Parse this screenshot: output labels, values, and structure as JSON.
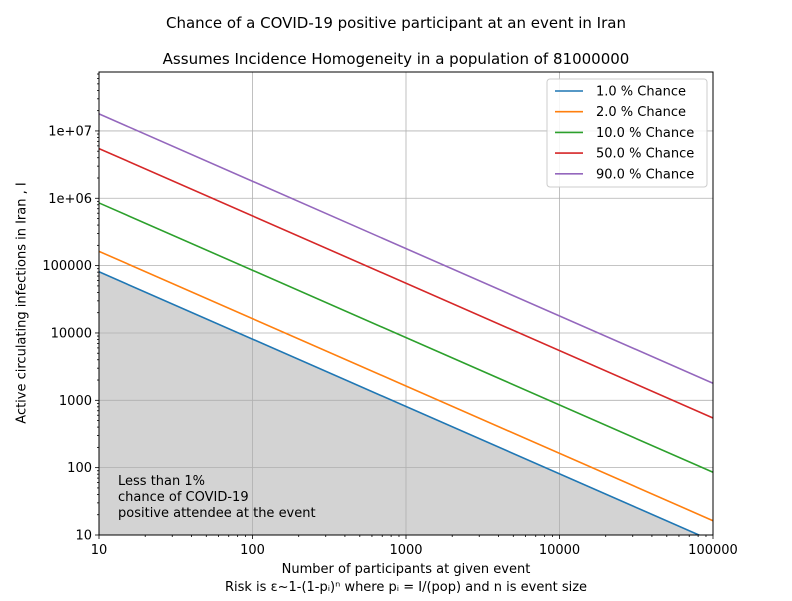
{
  "chart_data": {
    "type": "line",
    "title": "Chance of a COVID-19 positive participant at an event in Iran",
    "subtitle": "Assumes Incidence Homogeneity in a population of 81000000",
    "xlabel": "Number of participants at given event",
    "xlabel_line2": "Risk is ε~1-(1-pᵢ)ⁿ where pᵢ = I/(pop) and n is event size",
    "ylabel": "Active circulating infections in Iran , I",
    "x_scale": "log",
    "y_scale": "log",
    "xlim": [
      10,
      100000
    ],
    "ylim": [
      10,
      75000000
    ],
    "grid": true,
    "legend_position": "top-right",
    "x_ticks": [
      "10",
      "100",
      "1000",
      "10000",
      "100000"
    ],
    "y_ticks": [
      "10",
      "100",
      "1000",
      "10000",
      "100000",
      "1e+06",
      "1e+07"
    ],
    "x": [
      10,
      100000
    ],
    "series": [
      {
        "name": "1.0 % Chance",
        "color": "#1f77b4",
        "values": [
          81000,
          8.1
        ]
      },
      {
        "name": "2.0 % Chance",
        "color": "#ff7f0e",
        "values": [
          163000,
          16.3
        ]
      },
      {
        "name": "10.0 % Chance",
        "color": "#2ca02c",
        "values": [
          853000,
          85.3
        ]
      },
      {
        "name": "50.0 % Chance",
        "color": "#d62728",
        "values": [
          5470000,
          547
        ]
      },
      {
        "name": "90.0 % Chance",
        "color": "#9467bd",
        "values": [
          17900000,
          1790
        ]
      }
    ],
    "shaded_region": {
      "below_series": "1.0 % Chance",
      "color": "#d3d3d3"
    },
    "annotation": [
      "Less than 1%",
      "chance of COVID-19",
      "positive attendee at the event"
    ]
  }
}
